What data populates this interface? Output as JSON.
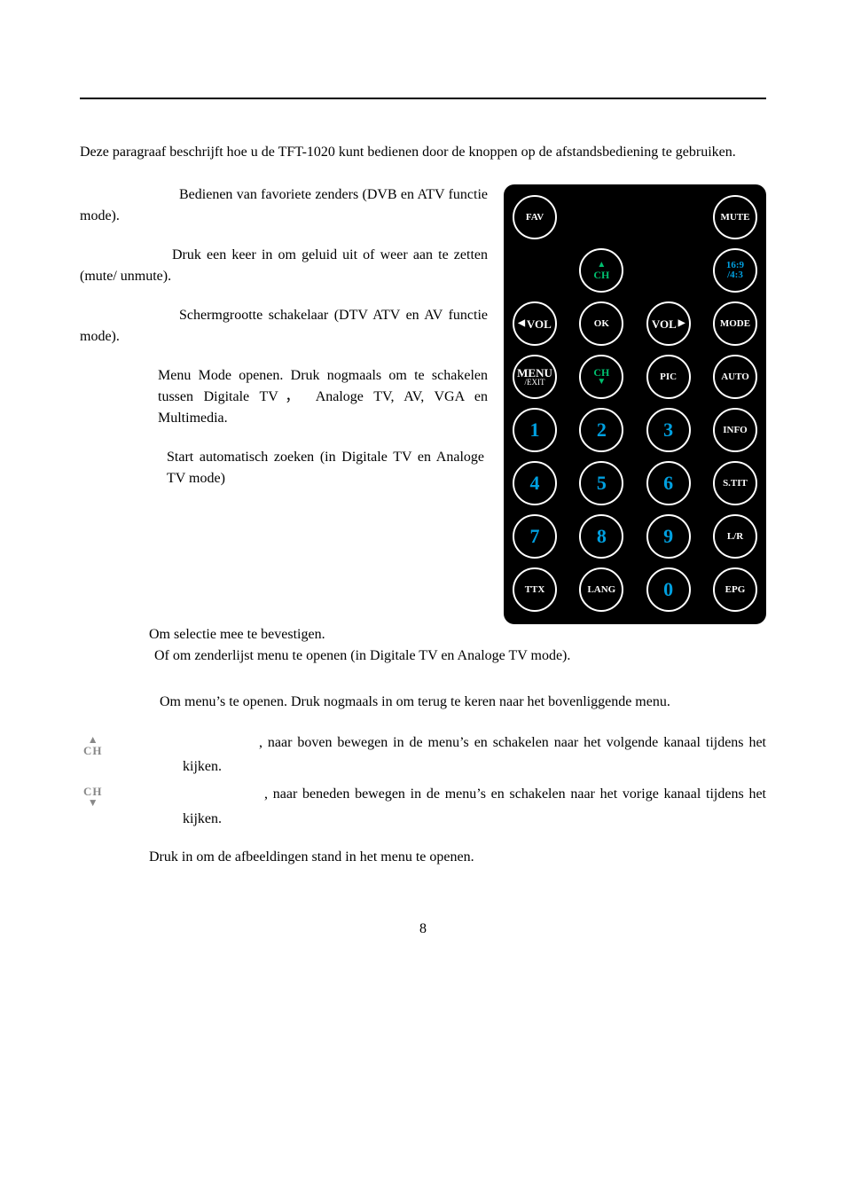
{
  "intro": "Deze paragraaf beschrijft hoe u de TFT-1020 kunt bedienen door de knoppen op de afstandsbediening te gebruiken.",
  "left_items": [
    {
      "lead_indent": 112,
      "text": "Bedienen van favoriete zenders (DVB en ATV functie mode)."
    },
    {
      "lead_indent": 104,
      "text": "Druk een keer in om geluid uit of weer aan te zetten (mute/ unmute)."
    },
    {
      "lead_indent": 112,
      "text": "Schermgrootte schakelaar (DTV ATV en AV functie mode)."
    }
  ],
  "mode_block": "Menu Mode openen. Druk nogmaals om te schakelen tussen Digitale TV， Analoge TV, AV, VGA en Multimedia.",
  "auto_block": "Start automatisch zoeken (in Digitale TV en Analoge TV mode)",
  "ok_line1": "Om selectie mee te bevestigen.",
  "ok_line2": "Of om zenderlijst menu te openen (in Digitale TV en Analoge TV mode).",
  "menu_block": "Om menu’s te openen. Druk nogmaals in om terug te keren naar het bovenliggende menu.",
  "ch_up": ", naar boven bewegen in de menu’s en schakelen naar het volgende kanaal tijdens het kijken.",
  "ch_down": ", naar beneden bewegen in de menu’s en schakelen naar het vorige kanaal tijdens het kijken.",
  "pic_line": "Druk in om de afbeeldingen stand in het menu te openen.",
  "page_number": "8",
  "remote": {
    "rows": [
      [
        "FAV",
        null,
        null,
        "MUTE"
      ],
      [
        null,
        {
          "type": "ch",
          "dir": "up"
        },
        null,
        {
          "type": "ratio",
          "t": "16:9",
          "b": "/4:3"
        }
      ],
      [
        {
          "type": "vol",
          "dir": "left",
          "label": "VOL"
        },
        "OK",
        {
          "type": "vol",
          "dir": "right",
          "label": "VOL"
        },
        "MODE"
      ],
      [
        {
          "type": "menu",
          "t": "MENU",
          "b": "/EXIT"
        },
        {
          "type": "ch",
          "dir": "down"
        },
        "PIC",
        "AUTO"
      ],
      [
        {
          "type": "num",
          "v": "1"
        },
        {
          "type": "num",
          "v": "2"
        },
        {
          "type": "num",
          "v": "3"
        },
        "INFO"
      ],
      [
        {
          "type": "num",
          "v": "4"
        },
        {
          "type": "num",
          "v": "5"
        },
        {
          "type": "num",
          "v": "6"
        },
        "S.TIT"
      ],
      [
        {
          "type": "num",
          "v": "7"
        },
        {
          "type": "num",
          "v": "8"
        },
        {
          "type": "num",
          "v": "9"
        },
        "L/R"
      ],
      [
        "TTX",
        "LANG",
        {
          "type": "num",
          "v": "0"
        },
        "EPG"
      ]
    ],
    "colors": {
      "num": "#00a0e0",
      "ch": "#00bf6f",
      "ratio": "#00a0e0"
    }
  }
}
